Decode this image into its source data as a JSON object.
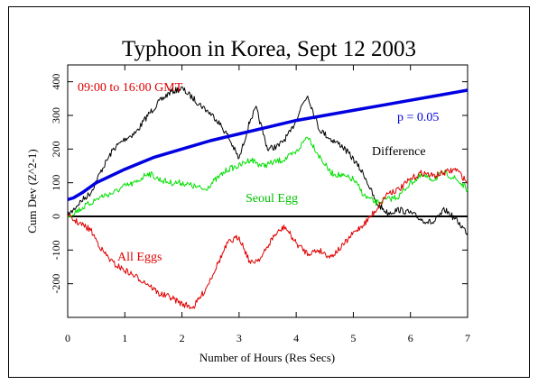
{
  "chart_data": {
    "type": "line",
    "title": "Typhoon in Korea, Sept 12 2003",
    "xlabel": "Number of Hours (Res Secs)",
    "ylabel": "Cum Dev (Z^2-1)",
    "xlim": [
      0,
      7
    ],
    "ylim": [
      -300,
      450
    ],
    "x_ticks": [
      0,
      1,
      2,
      3,
      4,
      5,
      6,
      7
    ],
    "y_ticks": [
      -200,
      -100,
      0,
      100,
      200,
      300,
      400
    ],
    "annotations": {
      "time_range": "09:00 to 16:00 GMT",
      "p_value": "p = 0.05",
      "difference": "Difference",
      "seoul_egg": "Seoul Egg",
      "all_eggs": "All Eggs"
    },
    "colors": {
      "difference": "#000000",
      "seoul_egg": "#00e000",
      "all_eggs": "#e00000",
      "p_curve": "#0000e0",
      "time_range": "#e00000",
      "p_value": "#0000e0"
    },
    "series": [
      {
        "name": "Difference",
        "x": [
          0,
          0.2,
          0.4,
          0.6,
          0.8,
          1.0,
          1.2,
          1.4,
          1.6,
          1.8,
          2.0,
          2.2,
          2.4,
          2.6,
          2.8,
          3.0,
          3.2,
          3.3,
          3.5,
          3.7,
          3.9,
          4.1,
          4.2,
          4.4,
          4.6,
          4.8,
          5.0,
          5.2,
          5.4,
          5.6,
          5.8,
          6.0,
          6.2,
          6.4,
          6.6,
          6.8,
          7.0
        ],
        "y": [
          0,
          40,
          70,
          140,
          200,
          230,
          250,
          300,
          340,
          370,
          380,
          350,
          320,
          290,
          240,
          170,
          290,
          320,
          200,
          210,
          250,
          330,
          360,
          260,
          230,
          210,
          170,
          120,
          40,
          10,
          20,
          10,
          -10,
          -20,
          20,
          -10,
          -50
        ]
      },
      {
        "name": "Seoul Egg",
        "x": [
          0,
          0.2,
          0.4,
          0.6,
          0.8,
          1.0,
          1.2,
          1.4,
          1.6,
          1.8,
          2.0,
          2.2,
          2.4,
          2.6,
          2.8,
          3.0,
          3.2,
          3.4,
          3.6,
          3.8,
          4.0,
          4.2,
          4.4,
          4.6,
          4.8,
          5.0,
          5.2,
          5.4,
          5.6,
          5.8,
          6.0,
          6.2,
          6.4,
          6.6,
          6.8,
          7.0
        ],
        "y": [
          0,
          20,
          40,
          60,
          70,
          90,
          100,
          130,
          110,
          100,
          100,
          90,
          80,
          110,
          140,
          150,
          170,
          150,
          160,
          170,
          190,
          240,
          180,
          130,
          120,
          110,
          60,
          40,
          50,
          60,
          100,
          120,
          110,
          130,
          110,
          80
        ]
      },
      {
        "name": "All Eggs",
        "x": [
          0,
          0.2,
          0.4,
          0.6,
          0.8,
          1.0,
          1.2,
          1.4,
          1.6,
          1.8,
          2.0,
          2.2,
          2.4,
          2.6,
          2.8,
          3.0,
          3.2,
          3.4,
          3.6,
          3.8,
          4.0,
          4.2,
          4.4,
          4.6,
          4.8,
          5.0,
          5.2,
          5.4,
          5.6,
          5.8,
          6.0,
          6.2,
          6.4,
          6.6,
          6.8,
          7.0
        ],
        "y": [
          0,
          -20,
          -40,
          -100,
          -140,
          -160,
          -180,
          -200,
          -230,
          -240,
          -260,
          -270,
          -220,
          -150,
          -80,
          -60,
          -140,
          -120,
          -60,
          -30,
          -80,
          -110,
          -100,
          -120,
          -90,
          -50,
          -20,
          20,
          70,
          80,
          110,
          130,
          120,
          130,
          140,
          100
        ]
      },
      {
        "name": "p = 0.05",
        "x": [
          0,
          0.1,
          0.25,
          0.5,
          0.75,
          1.0,
          1.5,
          2.0,
          2.5,
          3.0,
          3.5,
          4.0,
          4.5,
          5.0,
          5.5,
          6.0,
          6.5,
          7.0
        ],
        "y": [
          50,
          55,
          70,
          100,
          120,
          140,
          175,
          200,
          225,
          245,
          265,
          285,
          300,
          315,
          330,
          345,
          360,
          375
        ]
      }
    ]
  }
}
